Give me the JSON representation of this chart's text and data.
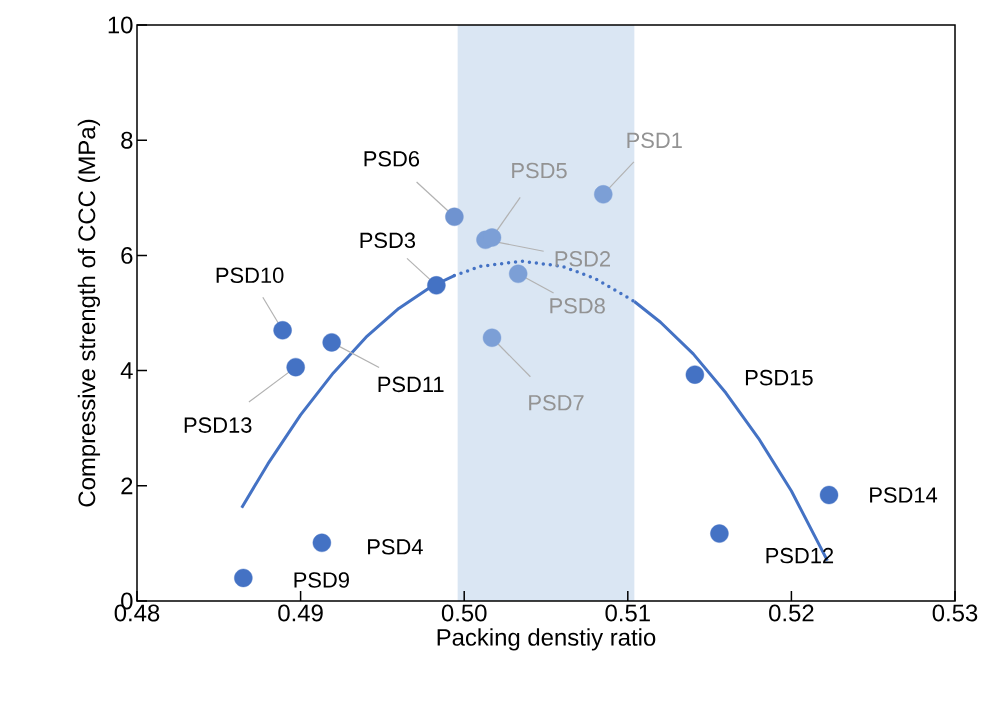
{
  "chart_data": {
    "type": "scatter",
    "xlabel": "Packing denstiy ratio",
    "ylabel": "Compressive strength of CCC (MPa)",
    "xlim": [
      0.48,
      0.53
    ],
    "ylim": [
      0,
      10
    ],
    "xticks": [
      0.48,
      0.49,
      {
        "value": 0.5,
        "label": "0.50"
      },
      0.51,
      0.52,
      0.53
    ],
    "yticks": [
      0,
      2,
      4,
      6,
      8,
      10
    ],
    "bands": [
      {
        "axis": "x",
        "from": 0.4996,
        "to": 0.5104,
        "color": "#dae6f3"
      }
    ],
    "series": [
      {
        "marker": "circle",
        "x": [
          0.5085,
          0.5013,
          0.4983,
          0.4913,
          0.5017,
          0.4994,
          0.5017,
          0.5033,
          0.4865,
          0.4889,
          0.4919,
          0.5156,
          0.4897,
          0.5223,
          0.5141
        ],
        "values": [
          7.06,
          6.27,
          5.48,
          1.01,
          6.31,
          6.67,
          4.57,
          5.68,
          0.4,
          4.7,
          4.49,
          1.17,
          4.06,
          1.84,
          3.93
        ],
        "colors": [
          "#7c9fd6",
          "#7c9fd6",
          "#4472c4",
          "#4472c4",
          "#7c9fd6",
          "#6f93d0",
          "#7c9fd6",
          "#7c9fd6",
          "#4472c4",
          "#4472c4",
          "#4472c4",
          "#4472c4",
          "#4472c4",
          "#4472c4",
          "#4472c4"
        ]
      },
      {
        "type": "line",
        "marker": "none",
        "line_style": "solid",
        "color": "#4472c4",
        "x": [
          0.4864,
          0.488,
          0.49,
          0.492,
          0.494,
          0.496,
          0.498,
          0.4994
        ],
        "values": [
          1.62,
          2.38,
          3.23,
          3.96,
          4.58,
          5.08,
          5.46,
          5.65
        ]
      },
      {
        "type": "line",
        "marker": "none",
        "line_style": "dotted",
        "color": "#4472c4",
        "x": [
          0.4994,
          0.501,
          0.5035,
          0.506,
          0.508,
          0.5104
        ],
        "values": [
          5.65,
          5.81,
          5.9,
          5.81,
          5.6,
          5.2
        ]
      },
      {
        "type": "line",
        "marker": "none",
        "line_style": "solid",
        "color": "#4472c4",
        "x": [
          0.5104,
          0.512,
          0.514,
          0.516,
          0.518,
          0.52,
          0.5222
        ],
        "values": [
          5.2,
          4.84,
          4.29,
          3.61,
          2.82,
          1.91,
          0.7
        ]
      }
    ],
    "annotations": [
      {
        "text": "PSD1",
        "x": 0.5085,
        "y": 7.06
      },
      {
        "text": "PSD2",
        "x": 0.5013,
        "y": 6.27
      },
      {
        "text": "PSD3",
        "x": 0.4983,
        "y": 5.48
      },
      {
        "text": "PSD4",
        "x": 0.4913,
        "y": 1.01
      },
      {
        "text": "PSD5",
        "x": 0.5017,
        "y": 6.31
      },
      {
        "text": "PSD6",
        "x": 0.4994,
        "y": 6.67
      },
      {
        "text": "PSD7",
        "x": 0.5017,
        "y": 4.57
      },
      {
        "text": "PSD8",
        "x": 0.5033,
        "y": 5.68
      },
      {
        "text": "PSD9",
        "x": 0.4865,
        "y": 0.4
      },
      {
        "text": "PSD10",
        "x": 0.4889,
        "y": 4.7
      },
      {
        "text": "PSD11",
        "x": 0.4919,
        "y": 4.49
      },
      {
        "text": "PSD12",
        "x": 0.5156,
        "y": 1.17
      },
      {
        "text": "PSD13",
        "x": 0.4897,
        "y": 4.06
      },
      {
        "text": "PSD14",
        "x": 0.5223,
        "y": 1.84
      },
      {
        "text": "PSD15",
        "x": 0.5141,
        "y": 3.93
      }
    ]
  }
}
